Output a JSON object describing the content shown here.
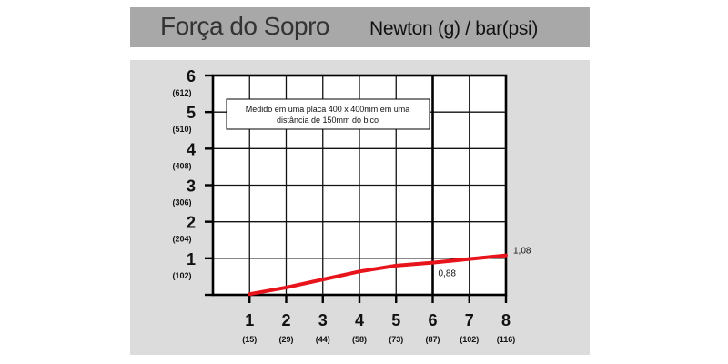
{
  "header": {
    "title": "Força do Sopro",
    "subtitle": "Newton (g) / bar(psi)"
  },
  "chart_data": {
    "type": "line",
    "title": "Força do Sopro",
    "subtitle": "Newton (g) / bar(psi)",
    "annotation": "Medido em uma placa 400 x 400mm em uma distância de 150mm do bico",
    "x_ticks": [
      {
        "label": "1",
        "sub": "(15)",
        "value": 1
      },
      {
        "label": "2",
        "sub": "(29)",
        "value": 2
      },
      {
        "label": "3",
        "sub": "(44)",
        "value": 3
      },
      {
        "label": "4",
        "sub": "(58)",
        "value": 4
      },
      {
        "label": "5",
        "sub": "(73)",
        "value": 5
      },
      {
        "label": "6",
        "sub": "(87)",
        "value": 6
      },
      {
        "label": "7",
        "sub": "(102)",
        "value": 7
      },
      {
        "label": "8",
        "sub": "(116)",
        "value": 8
      }
    ],
    "y_ticks": [
      {
        "label": "1",
        "sub": "(102)",
        "value": 1
      },
      {
        "label": "2",
        "sub": "(204)",
        "value": 2
      },
      {
        "label": "3",
        "sub": "(306)",
        "value": 3
      },
      {
        "label": "4",
        "sub": "(408)",
        "value": 4
      },
      {
        "label": "5",
        "sub": "(510)",
        "value": 5
      },
      {
        "label": "6",
        "sub": "(612)",
        "value": 6
      }
    ],
    "xlim": [
      0,
      8
    ],
    "ylim": [
      0,
      6
    ],
    "highlight_x": 6,
    "grid": true,
    "series": [
      {
        "color": "#e8141c",
        "x": [
          1,
          2,
          3,
          4,
          5,
          6,
          7,
          8
        ],
        "y": [
          0.02,
          0.2,
          0.42,
          0.64,
          0.8,
          0.88,
          0.98,
          1.08
        ]
      }
    ],
    "data_labels": [
      {
        "x": 6,
        "y": 0.88,
        "text": "0,88"
      },
      {
        "x": 8,
        "y": 1.08,
        "text": "1,08"
      }
    ]
  }
}
